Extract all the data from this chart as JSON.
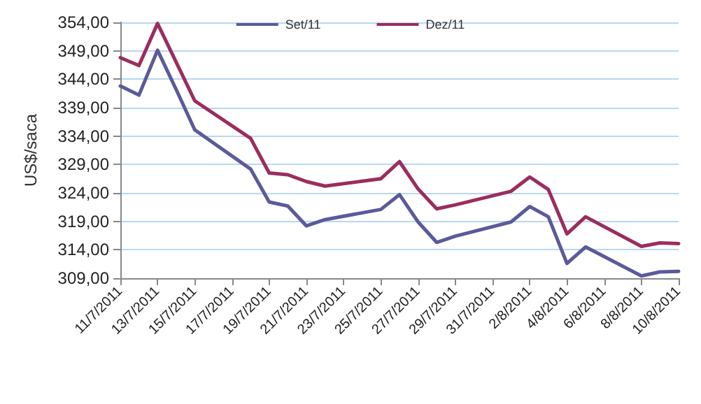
{
  "chart_data": {
    "type": "line",
    "ylabel": "US$/saca",
    "x": [
      "2011-07-11",
      "2011-07-12",
      "2011-07-13",
      "2011-07-14",
      "2011-07-15",
      "2011-07-18",
      "2011-07-19",
      "2011-07-20",
      "2011-07-21",
      "2011-07-22",
      "2011-07-25",
      "2011-07-26",
      "2011-07-27",
      "2011-07-28",
      "2011-07-29",
      "2011-08-01",
      "2011-08-02",
      "2011-08-03",
      "2011-08-04",
      "2011-08-05",
      "2011-08-08",
      "2011-08-09",
      "2011-08-10"
    ],
    "series": [
      {
        "name": "Set/11",
        "color": "#5b5a9a",
        "values": [
          342.8,
          341.2,
          349.1,
          342.2,
          335.1,
          328.2,
          322.4,
          321.7,
          318.2,
          319.3,
          321.1,
          323.7,
          318.9,
          315.3,
          316.4,
          318.9,
          321.6,
          319.8,
          311.6,
          314.5,
          309.4,
          310.1,
          310.2
        ]
      },
      {
        "name": "Dez/11",
        "color": "#9b2d5e",
        "values": [
          347.8,
          346.4,
          353.8,
          347.0,
          340.2,
          333.6,
          327.5,
          327.2,
          326.0,
          325.2,
          326.5,
          329.5,
          324.7,
          321.2,
          321.9,
          324.3,
          326.8,
          324.6,
          316.8,
          319.8,
          314.6,
          315.2,
          315.1
        ]
      }
    ],
    "xlim": [
      "2011-07-11",
      "2011-08-10"
    ],
    "xticks": [
      {
        "value": "2011-07-11",
        "label": "11/7/2011"
      },
      {
        "value": "2011-07-13",
        "label": "13/7/2011"
      },
      {
        "value": "2011-07-15",
        "label": "15/7/2011"
      },
      {
        "value": "2011-07-17",
        "label": "17/7/2011"
      },
      {
        "value": "2011-07-19",
        "label": "19/7/2011"
      },
      {
        "value": "2011-07-21",
        "label": "21/7/2011"
      },
      {
        "value": "2011-07-23",
        "label": "23/7/2011"
      },
      {
        "value": "2011-07-25",
        "label": "25/7/2011"
      },
      {
        "value": "2011-07-27",
        "label": "27/7/2011"
      },
      {
        "value": "2011-07-29",
        "label": "29/7/2011"
      },
      {
        "value": "2011-07-31",
        "label": "31/7/2011"
      },
      {
        "value": "2011-08-02",
        "label": "2/8/2011"
      },
      {
        "value": "2011-08-04",
        "label": "4/8/2011"
      },
      {
        "value": "2011-08-06",
        "label": "6/8/2011"
      },
      {
        "value": "2011-08-08",
        "label": "8/8/2011"
      },
      {
        "value": "2011-08-10",
        "label": "10/8/2011"
      }
    ],
    "ylim": [
      309,
      354
    ],
    "yticks": [
      {
        "value": 309,
        "label": "309,00"
      },
      {
        "value": 314,
        "label": "314,00"
      },
      {
        "value": 319,
        "label": "319,00"
      },
      {
        "value": 324,
        "label": "324,00"
      },
      {
        "value": 329,
        "label": "329,00"
      },
      {
        "value": 334,
        "label": "334,00"
      },
      {
        "value": 339,
        "label": "339,00"
      },
      {
        "value": 344,
        "label": "344,00"
      },
      {
        "value": 349,
        "label": "349,00"
      },
      {
        "value": 354,
        "label": "354,00"
      }
    ],
    "grid": "y",
    "legend": "top",
    "marker": "none",
    "line_style": "solid"
  }
}
